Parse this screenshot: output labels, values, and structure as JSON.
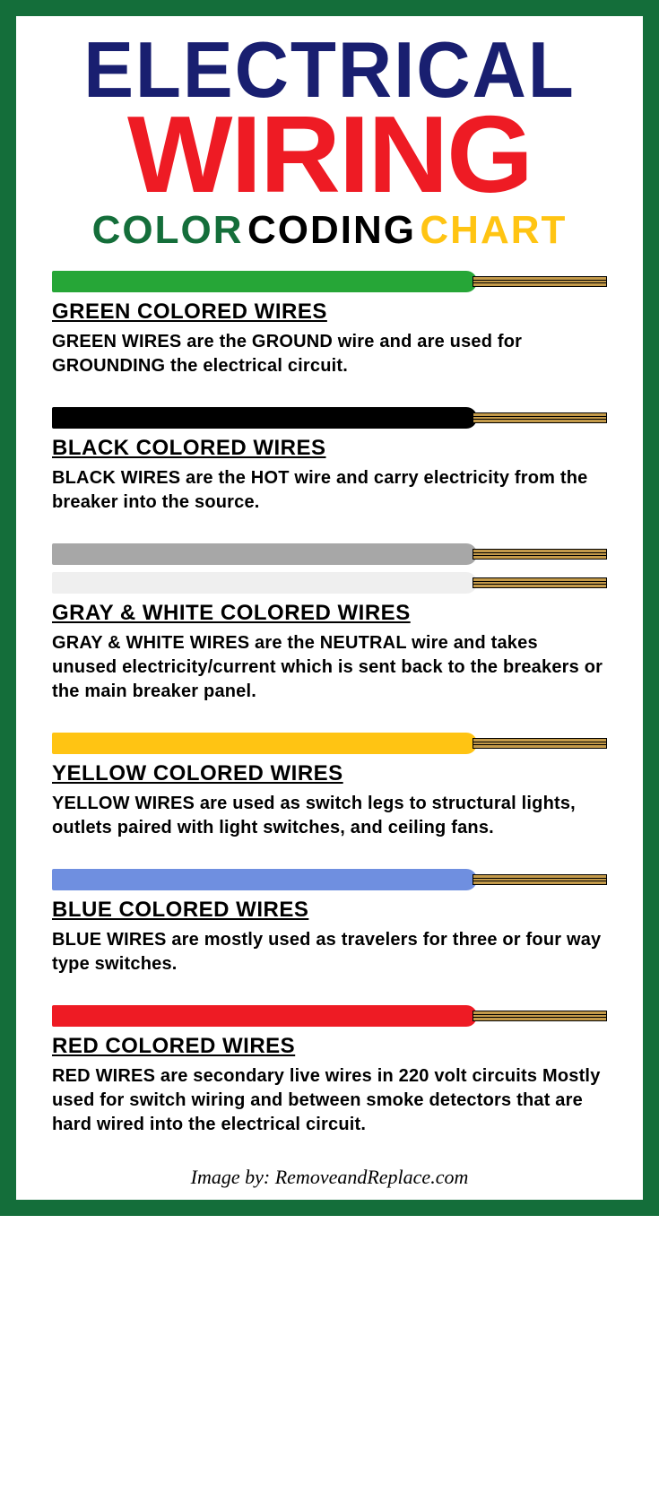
{
  "title": {
    "line1": "ELECTRICAL",
    "line1_color": "#191f70",
    "line2": "WIRING",
    "line2_color": "#ee1b24",
    "subtitle_words": [
      {
        "text": "COLOR",
        "color": "#146e3a"
      },
      {
        "text": "CODING",
        "color": "#000000"
      },
      {
        "text": "CHART",
        "color": "#ffc413"
      }
    ]
  },
  "border_color": "#146e3a",
  "background_color": "#ffffff",
  "conductor_color": "#c39a4a",
  "wires": [
    {
      "id": "green",
      "colors": [
        "#26a637"
      ],
      "heading": "GREEN COLORED WIRES",
      "description": "GREEN WIRES are the GROUND wire and are used for GROUNDING the electrical circuit."
    },
    {
      "id": "black",
      "colors": [
        "#000000"
      ],
      "heading": "BLACK COLORED WIRES",
      "description": "BLACK WIRES are the HOT wire and carry electricity from the breaker into the source."
    },
    {
      "id": "gray-white",
      "colors": [
        "#a7a7a7",
        "#efefef"
      ],
      "heading": "GRAY & WHITE COLORED WIRES",
      "description": "GRAY & WHITE WIRES are the NEUTRAL wire and takes unused electricity/current which is sent back to the breakers or the main breaker panel."
    },
    {
      "id": "yellow",
      "colors": [
        "#ffc413"
      ],
      "heading": "YELLOW COLORED WIRES",
      "description": "YELLOW WIRES are used as switch legs to structural lights, outlets paired with light switches, and ceiling fans."
    },
    {
      "id": "blue",
      "colors": [
        "#6f8fe0"
      ],
      "heading": "BLUE COLORED WIRES",
      "description": "BLUE WIRES are mostly used as travelers for three or four way type switches."
    },
    {
      "id": "red",
      "colors": [
        "#ee1b24"
      ],
      "heading": "RED COLORED WIRES",
      "description": "RED WIRES are secondary live wires in 220 volt circuits Mostly used for switch wiring and between smoke detectors that are hard wired into the electrical circuit."
    }
  ],
  "credit": "Image by: RemoveandReplace.com"
}
